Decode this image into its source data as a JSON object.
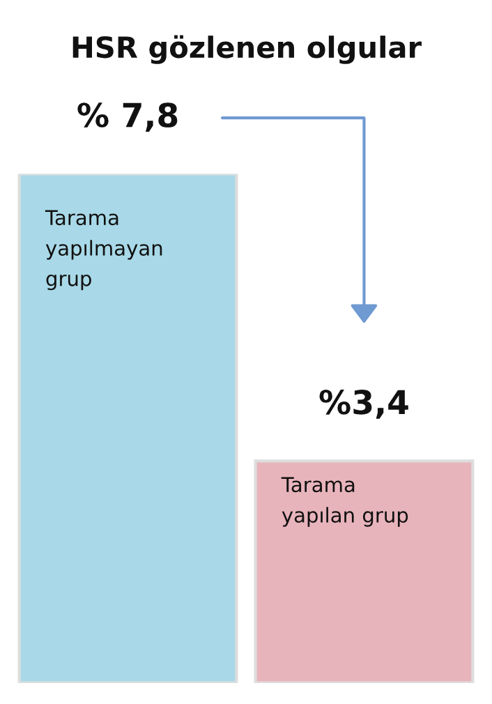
{
  "chart_data": {
    "type": "bar",
    "title": "HSR gözlenen olgular",
    "categories": [
      "Tarama\nyapılmayan\ngrup",
      "Tarama\nyapılan grup"
    ],
    "values": [
      7.8,
      3.4
    ],
    "value_labels": [
      "% 7,8",
      "%3,4"
    ],
    "colors": [
      "#a9d9e8",
      "#e8b4bb"
    ]
  }
}
